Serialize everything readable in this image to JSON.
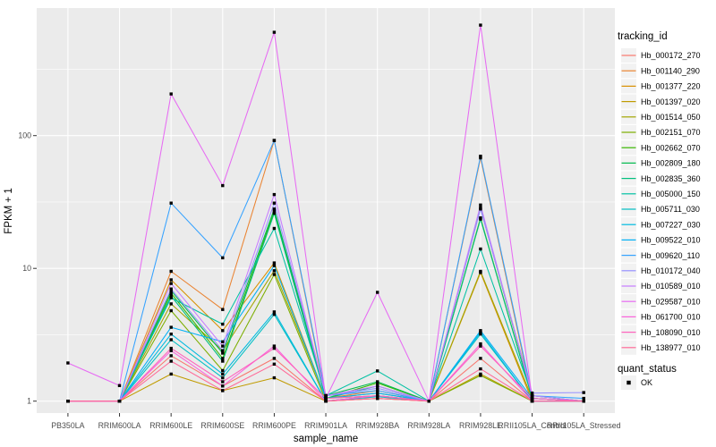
{
  "colors": {
    "background": "#FFFFFF",
    "panel_bg": "#EBEBEB",
    "gridline": "#FFFFFF",
    "tick_mark": "#333333",
    "tick_label": "#4D4D4D",
    "axis_title": "#000000",
    "legend_key_bg": "#F2F2F2",
    "point": "#000000"
  },
  "chart_data": {
    "type": "line",
    "title": "",
    "xlabel": "sample_name",
    "ylabel": "FPKM + 1",
    "y_scale": "log10",
    "y_ticks": [
      1,
      10,
      100
    ],
    "y_tick_labels": [
      "1",
      "10",
      "100"
    ],
    "y_minor_ticks": [
      3.162,
      31.62,
      316.2
    ],
    "ylim": [
      0.8,
      900
    ],
    "grid": true,
    "legend_position": "right",
    "point_marker": "black-square",
    "categories": [
      "PB350LA",
      "RRIM600LA",
      "RRIM600LE",
      "RRIM600SE",
      "RRIM600PE",
      "RRIM901LA",
      "RRIM928BA",
      "RRIM928LA",
      "RRIM928LE",
      "RRII105LA_Control",
      "RRII105LA_Stressed"
    ],
    "legends": {
      "tracking": {
        "title": "tracking_id"
      },
      "quant": {
        "title": "quant_status",
        "items": [
          {
            "label": "OK",
            "marker": "black-square"
          }
        ]
      }
    },
    "series": [
      {
        "name": "Hb_000172_270",
        "color": "#F8766D",
        "values": [
          1,
          1,
          2.2,
          1.3,
          2.1,
          1.0,
          1.05,
          1,
          2.1,
          1.0,
          1.0
        ]
      },
      {
        "name": "Hb_001140_290",
        "color": "#EA8331",
        "values": [
          1,
          1,
          9.5,
          4.9,
          92,
          1.05,
          1.2,
          1,
          68,
          1.05,
          1.0
        ]
      },
      {
        "name": "Hb_001377_220",
        "color": "#D89000",
        "values": [
          1,
          1,
          8.2,
          3.4,
          11,
          1.05,
          1.15,
          1,
          9.3,
          1.0,
          1.0
        ]
      },
      {
        "name": "Hb_001397_020",
        "color": "#C09B00",
        "values": [
          1,
          1,
          1.6,
          1.2,
          1.5,
          1.0,
          1.05,
          1,
          1.6,
          1.0,
          1.0
        ]
      },
      {
        "name": "Hb_001514_050",
        "color": "#A3A500",
        "values": [
          1,
          1,
          5.4,
          2.4,
          9.6,
          1.05,
          1.1,
          1,
          9.5,
          1.05,
          1.0
        ]
      },
      {
        "name": "Hb_002151_070",
        "color": "#7CAE00",
        "values": [
          1,
          1,
          4.8,
          1.7,
          9.0,
          1.0,
          1.1,
          1,
          1.56,
          1.0,
          1.0
        ]
      },
      {
        "name": "Hb_002662_070",
        "color": "#39B600",
        "values": [
          1,
          1,
          6.5,
          2.1,
          27,
          1.05,
          1.37,
          1,
          24,
          1.05,
          1.0
        ]
      },
      {
        "name": "Hb_002809_180",
        "color": "#00BB4E",
        "values": [
          1,
          1,
          6.8,
          2.3,
          28,
          1.1,
          1.4,
          1,
          28.5,
          1.1,
          1.0
        ]
      },
      {
        "name": "Hb_002835_360",
        "color": "#00BF7D",
        "values": [
          1,
          1,
          6.2,
          2.0,
          26,
          1.05,
          1.3,
          1,
          23.5,
          1.05,
          1.0
        ]
      },
      {
        "name": "Hb_005000_150",
        "color": "#00C1A3",
        "values": [
          1,
          1,
          6.0,
          3.8,
          20,
          1.1,
          1.69,
          1,
          14,
          1.1,
          1.0
        ]
      },
      {
        "name": "Hb_005711_030",
        "color": "#00BFC4",
        "values": [
          1,
          1,
          2.9,
          1.5,
          4.5,
          1.0,
          1.08,
          1,
          3.2,
          1.0,
          1.0
        ]
      },
      {
        "name": "Hb_007227_030",
        "color": "#00BAE0",
        "values": [
          1,
          1,
          3.2,
          1.6,
          4.7,
          1.0,
          1.1,
          1,
          3.3,
          1.0,
          1.0
        ]
      },
      {
        "name": "Hb_009522_010",
        "color": "#00B0F6",
        "values": [
          1,
          1,
          3.6,
          2.8,
          10.5,
          1.05,
          1.15,
          1,
          3.4,
          1.05,
          1.0
        ]
      },
      {
        "name": "Hb_009620_110",
        "color": "#35A2FF",
        "values": [
          1,
          1,
          31,
          12,
          92,
          1.1,
          1.2,
          1,
          70,
          1.1,
          1.05
        ]
      },
      {
        "name": "Hb_010172_040",
        "color": "#9590FF",
        "values": [
          1,
          1,
          7.0,
          2.4,
          31,
          1.1,
          1.25,
          1,
          28,
          1.15,
          1.16
        ]
      },
      {
        "name": "Hb_010589_010",
        "color": "#C77CFF",
        "values": [
          1,
          1,
          7.7,
          2.6,
          36,
          1.1,
          1.3,
          1,
          30,
          1.1,
          1.0
        ]
      },
      {
        "name": "Hb_029587_010",
        "color": "#E76BF3",
        "values": [
          1.94,
          1.31,
          206,
          42,
          600,
          1.05,
          6.6,
          1,
          680,
          1.05,
          1.0
        ]
      },
      {
        "name": "Hb_061700_010",
        "color": "#FA62DB",
        "values": [
          1,
          1,
          2.4,
          1.3,
          2.6,
          1.0,
          1.1,
          1,
          2.7,
          1.0,
          1.0
        ]
      },
      {
        "name": "Hb_108090_010",
        "color": "#FF62BC",
        "values": [
          1,
          1,
          2.5,
          1.4,
          2.5,
          1.05,
          1.1,
          1,
          2.6,
          1.05,
          1.0
        ]
      },
      {
        "name": "Hb_138977_010",
        "color": "#FF6A98",
        "values": [
          1,
          1,
          2.0,
          1.2,
          1.9,
          1.0,
          1.05,
          1,
          1.75,
          1.0,
          1.0
        ]
      }
    ]
  }
}
